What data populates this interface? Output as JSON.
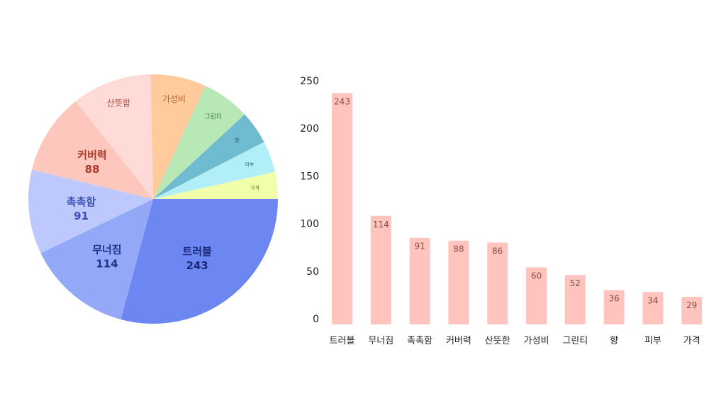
{
  "chart_data": [
    {
      "type": "pie",
      "categories": [
        "트러블",
        "무너짐",
        "촉촉함",
        "커버력",
        "산뜻함",
        "가성비",
        "그린티",
        "향",
        "피부",
        "가격"
      ],
      "values": [
        243,
        114,
        91,
        88,
        86,
        60,
        52,
        36,
        34,
        29
      ],
      "colors": [
        "#6d87f2",
        "#94a8f8",
        "#bdc8fc",
        "#fec7bd",
        "#ffdbd7",
        "#ffcb9d",
        "#b8e8b6",
        "#6fbbcf",
        "#b2eef8",
        "#f1ffab"
      ],
      "label_colors": [
        "#1a2a78",
        "#1f3488",
        "#3b4fb3",
        "#a83b2c",
        "#b04a3e",
        "#b2642a",
        "#3c7a3a",
        "#1f5a6a",
        "#2a6f7c",
        "#6b7a20"
      ],
      "show_values_for_top": 4
    },
    {
      "type": "bar",
      "categories": [
        "트러블",
        "무너짐",
        "촉촉함",
        "커버력",
        "산뜻한",
        "가성비",
        "그린티",
        "향",
        "피부",
        "가격"
      ],
      "values": [
        243,
        114,
        91,
        88,
        86,
        60,
        52,
        36,
        34,
        29
      ],
      "ylim": [
        0,
        250
      ],
      "yticks": [
        0,
        50,
        100,
        150,
        200,
        250
      ],
      "bar_color": "#ffc4bd",
      "value_label_color": "#8a4a44",
      "grid": false,
      "title": "",
      "xlabel": "",
      "ylabel": ""
    }
  ]
}
